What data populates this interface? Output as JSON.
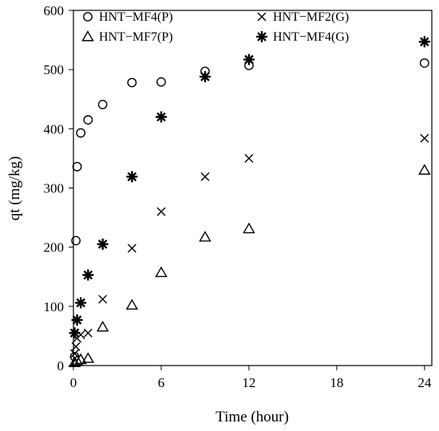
{
  "chart_data": {
    "type": "scatter",
    "title": "",
    "xlabel": "Time (hour)",
    "ylabel": "qt (mg/kg)",
    "xlim": [
      0,
      24.5
    ],
    "ylim": [
      0,
      600
    ],
    "xticks": [
      0,
      6,
      12,
      18,
      24
    ],
    "yticks": [
      0,
      100,
      200,
      300,
      400,
      500,
      600
    ],
    "grid": false,
    "legend_placement": "top",
    "series": [
      {
        "name": "HNT−MF4(P)",
        "marker": "circle",
        "x": [
          0.083,
          0.167,
          0.25,
          0.5,
          1,
          2,
          4,
          6,
          9,
          12,
          24
        ],
        "y": [
          15,
          211,
          336,
          393,
          415,
          441,
          478,
          479,
          497,
          507,
          511
        ]
      },
      {
        "name": "HNT−MF2(G)",
        "marker": "x",
        "x": [
          0.083,
          0.167,
          0.25,
          0.5,
          1,
          2,
          4,
          6,
          9,
          12,
          24
        ],
        "y": [
          20,
          32,
          46,
          52,
          55,
          112,
          198,
          260,
          319,
          350,
          384
        ]
      },
      {
        "name": "HNT−MF7(P)",
        "marker": "triangle",
        "x": [
          0.083,
          0.25,
          0.5,
          1,
          2,
          4,
          6,
          9,
          12,
          24
        ],
        "y": [
          5,
          8,
          10,
          12,
          65,
          102,
          157,
          217,
          231,
          330
        ]
      },
      {
        "name": "HNT−MF4(G)",
        "marker": "asterisk",
        "x": [
          0.083,
          0.25,
          0.5,
          1,
          2,
          4,
          6,
          9,
          12,
          24
        ],
        "y": [
          55,
          77,
          106,
          153,
          205,
          319,
          420,
          488,
          517,
          547
        ]
      }
    ]
  }
}
